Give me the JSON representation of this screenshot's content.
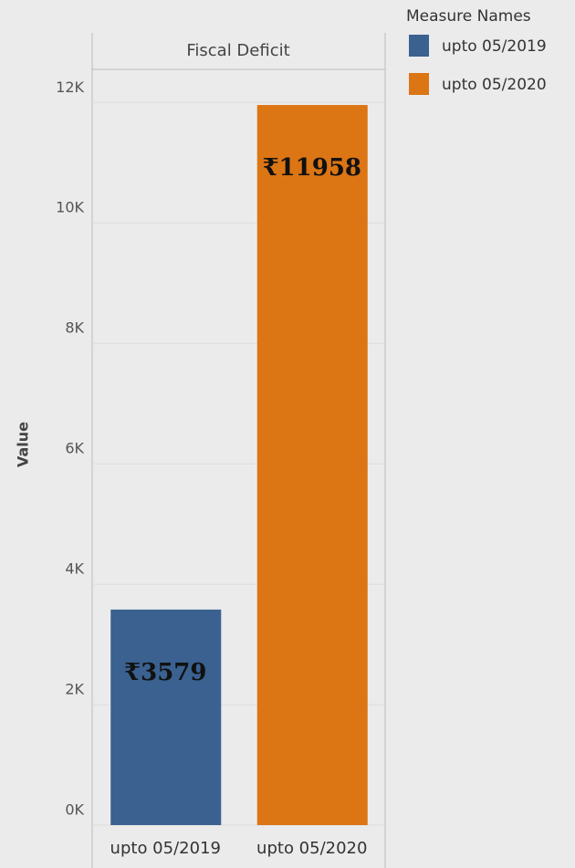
{
  "chart_data": {
    "type": "bar",
    "header": "Fiscal Deficit",
    "y_label": "Value",
    "categories": [
      "upto 05/2019",
      "upto 05/2020"
    ],
    "values": [
      3579,
      11958
    ],
    "value_labels": [
      "₹3579",
      "₹11958"
    ],
    "colors": [
      "#3a6190",
      "#dc7514"
    ],
    "ylim": [
      0,
      12550
    ],
    "yticks": [
      {
        "value": 0,
        "label": "0K"
      },
      {
        "value": 2000,
        "label": "2K"
      },
      {
        "value": 4000,
        "label": "4K"
      },
      {
        "value": 6000,
        "label": "6K"
      },
      {
        "value": 8000,
        "label": "8K"
      },
      {
        "value": 10000,
        "label": "10K"
      },
      {
        "value": 12000,
        "label": "12K"
      }
    ],
    "grid": true,
    "legend": {
      "title": "Measure Names",
      "position": "top-right"
    }
  }
}
